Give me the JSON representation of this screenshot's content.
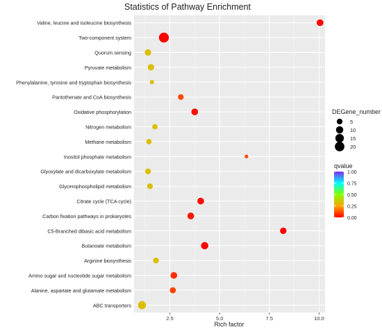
{
  "chart_data": {
    "type": "scatter",
    "title": "Statistics of Pathway Enrichment",
    "xlabel": "Rich factor",
    "ylabel": "",
    "xlim": [
      0.7,
      10.3
    ],
    "xticks": [
      2.5,
      5.0,
      7.5,
      10.0
    ],
    "xtick_labels": [
      "2.5",
      "5.0",
      "7.5",
      "10.0"
    ],
    "grid": true,
    "background": "#ebebeb",
    "categories": [
      "Valine, leucine and isoleucine biosynthesis",
      "Two-component system",
      "Quorum sensing",
      "Pyruvate metabolism",
      "Phenylalanine, tyrosine and tryptophan biosynthesis",
      "Pantothenate and CoA biosynthesis",
      "Oxidative phosphorylation",
      "Nitrogen metabolism",
      "Methane metabolism",
      "Inositol phosphate metabolism",
      "Glyoxylate and dicarboxylate metabolism",
      "Glycerophospholipid metabolism",
      "Citrate cycle (TCA cycle)",
      "Carbon fixation pathways in prokaryotes",
      "C5-Branched dibasic acid metabolism",
      "Butanoate metabolism",
      "Arginine biosynthesis",
      "Amino sugar and nucleotide sugar metabolism",
      "Alanine, aspartate and glutamate metabolism",
      "ABC transporters"
    ],
    "points": [
      {
        "pathway": "Valine, leucine and isoleucine biosynthesis",
        "rich_factor": 10.05,
        "degene_number": 8,
        "qvalue": 0.0
      },
      {
        "pathway": "Two-component system",
        "rich_factor": 2.2,
        "degene_number": 22,
        "qvalue": 0.0
      },
      {
        "pathway": "Quorum sensing",
        "rich_factor": 1.4,
        "degene_number": 7,
        "qvalue": 0.32
      },
      {
        "pathway": "Pyruvate metabolism",
        "rich_factor": 1.55,
        "degene_number": 7,
        "qvalue": 0.32
      },
      {
        "pathway": "Phenylalanine, tyrosine and tryptophan biosynthesis",
        "rich_factor": 1.6,
        "degene_number": 2,
        "qvalue": 0.32
      },
      {
        "pathway": "Pantothenate and CoA biosynthesis",
        "rich_factor": 3.05,
        "degene_number": 5,
        "qvalue": 0.11
      },
      {
        "pathway": "Oxidative phosphorylation",
        "rich_factor": 3.75,
        "degene_number": 8,
        "qvalue": 0.02
      },
      {
        "pathway": "Nitrogen metabolism",
        "rich_factor": 1.75,
        "degene_number": 4,
        "qvalue": 0.32
      },
      {
        "pathway": "Methane metabolism",
        "rich_factor": 1.45,
        "degene_number": 4,
        "qvalue": 0.32
      },
      {
        "pathway": "Inositol phosphate metabolism",
        "rich_factor": 6.35,
        "degene_number": 1,
        "qvalue": 0.11
      },
      {
        "pathway": "Glyoxylate and dicarboxylate metabolism",
        "rich_factor": 1.4,
        "degene_number": 5,
        "qvalue": 0.32
      },
      {
        "pathway": "Glycerophospholipid metabolism",
        "rich_factor": 1.5,
        "degene_number": 5,
        "qvalue": 0.32
      },
      {
        "pathway": "Citrate cycle (TCA cycle)",
        "rich_factor": 4.05,
        "degene_number": 8,
        "qvalue": 0.02
      },
      {
        "pathway": "Carbon fixation pathways in prokaryotes",
        "rich_factor": 3.55,
        "degene_number": 8,
        "qvalue": 0.03
      },
      {
        "pathway": "C5-Branched dibasic acid metabolism",
        "rich_factor": 8.2,
        "degene_number": 7,
        "qvalue": 0.0
      },
      {
        "pathway": "Butanoate metabolism",
        "rich_factor": 4.25,
        "degene_number": 10,
        "qvalue": 0.0
      },
      {
        "pathway": "Arginine biosynthesis",
        "rich_factor": 1.8,
        "degene_number": 5,
        "qvalue": 0.32
      },
      {
        "pathway": "Amino sugar and nucleotide sugar metabolism",
        "rich_factor": 2.7,
        "degene_number": 8,
        "qvalue": 0.07
      },
      {
        "pathway": "Alanine, aspartate and glutamate metabolism",
        "rich_factor": 2.65,
        "degene_number": 6,
        "qvalue": 0.1
      },
      {
        "pathway": "ABC transporters",
        "rich_factor": 1.1,
        "degene_number": 13,
        "qvalue": 0.32
      }
    ],
    "size_legend": {
      "title": "DEGene_number",
      "values": [
        5,
        10,
        15,
        20
      ],
      "labels": [
        "5",
        "10",
        "15",
        "20"
      ]
    },
    "color_legend": {
      "title": "qvalue",
      "min": 0.0,
      "max": 1.0,
      "ticks": [
        1.0,
        0.75,
        0.5,
        0.25,
        0.0
      ],
      "tick_labels": [
        "1.00",
        "0.75",
        "0.50",
        "0.25",
        "0.00"
      ],
      "colors": [
        "#ff0000",
        "#ffa500",
        "#7fff00",
        "#00ffff",
        "#7b2cf0"
      ]
    },
    "legend_position": "right"
  }
}
